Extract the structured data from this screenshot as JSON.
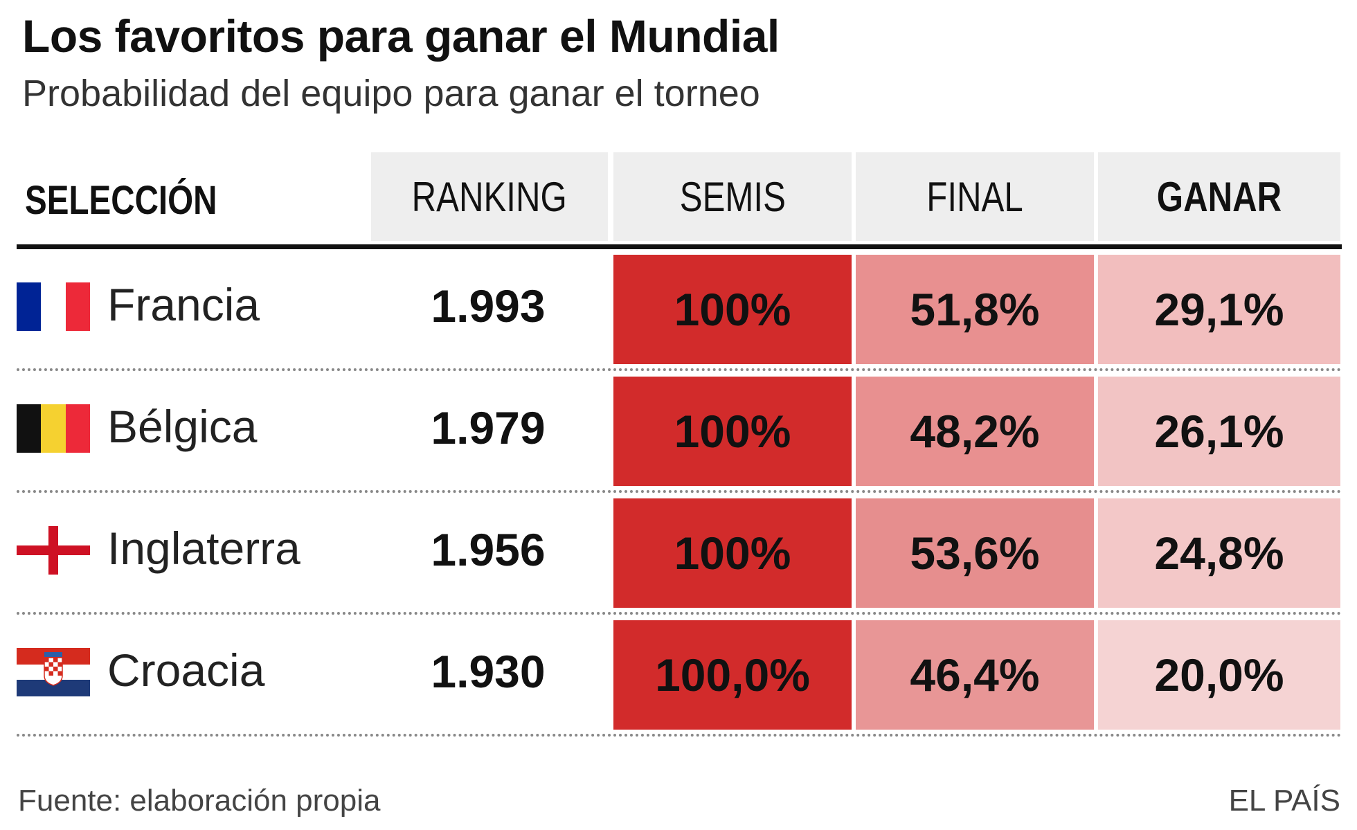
{
  "title": "Los favoritos para ganar el Mundial",
  "subtitle": "Probabilidad del equipo para ganar el torneo",
  "footer": {
    "source": "Fuente: elaboración propia",
    "brand": "EL PAÍS"
  },
  "colors": {
    "semis": "#d22b2b",
    "final": "#e89090",
    "win_high": "#f2bebe",
    "win_low": "#f5d3d3",
    "header_bg": "#eeeeee"
  },
  "chart_data": {
    "type": "table",
    "columns": [
      "SELECCIÓN",
      "RANKING",
      "SEMIS",
      "FINAL",
      "GANAR"
    ],
    "rows": [
      {
        "team": "Francia",
        "flag": "france-flag-icon",
        "ranking": "1.993",
        "semis": "100%",
        "final": "51,8%",
        "win": "29,1%"
      },
      {
        "team": "Bélgica",
        "flag": "belgium-flag-icon",
        "ranking": "1.979",
        "semis": "100%",
        "final": "48,2%",
        "win": "26,1%"
      },
      {
        "team": "Inglaterra",
        "flag": "england-flag-icon",
        "ranking": "1.956",
        "semis": "100%",
        "final": "53,6%",
        "win": "24,8%"
      },
      {
        "team": "Croacia",
        "flag": "croatia-flag-icon",
        "ranking": "1.930",
        "semis": "100,0%",
        "final": "46,4%",
        "win": "20,0%"
      }
    ]
  }
}
